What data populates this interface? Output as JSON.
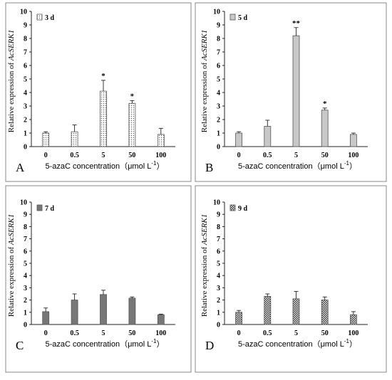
{
  "chart_data": [
    {
      "type": "bar",
      "panel_letter": "A",
      "legend": "3 d",
      "categories": [
        "0",
        "0.5",
        "5",
        "50",
        "100"
      ],
      "values": [
        1.0,
        1.1,
        4.1,
        3.2,
        0.9
      ],
      "errors": [
        0.1,
        0.5,
        0.8,
        0.2,
        0.45
      ],
      "significance": [
        "",
        "",
        "*",
        "*",
        ""
      ],
      "ylabel_prefix": "Relative expression of ",
      "ylabel_gene": "AcSERK1",
      "xlabel": "5-azaC  concentration（μmol L",
      "xlabel_sup": "-1",
      "xlabel_end": "）",
      "yticks": [
        "0",
        "1",
        "2",
        "3",
        "4",
        "5",
        "6",
        "7",
        "8",
        "9",
        "10"
      ],
      "ylim": [
        0,
        10
      ],
      "fill": "dots"
    },
    {
      "type": "bar",
      "panel_letter": "B",
      "legend": "5 d",
      "categories": [
        "0",
        "0.5",
        "5",
        "50",
        "100"
      ],
      "values": [
        1.0,
        1.5,
        8.2,
        2.7,
        0.9
      ],
      "errors": [
        0.1,
        0.45,
        0.6,
        0.15,
        0.1
      ],
      "significance": [
        "",
        "",
        "**",
        "*",
        ""
      ],
      "ylabel_prefix": "Relative expression of ",
      "ylabel_gene": "AcSERK1",
      "xlabel": "5-azaC  concentration（μmol L",
      "xlabel_sup": "-1",
      "xlabel_end": "）",
      "yticks": [
        "0",
        "1",
        "2",
        "3",
        "4",
        "5",
        "6",
        "7",
        "8",
        "9",
        "10"
      ],
      "ylim": [
        0,
        10
      ],
      "fill": "gray"
    },
    {
      "type": "bar",
      "panel_letter": "C",
      "legend": "7 d",
      "categories": [
        "0",
        "0.5",
        "5",
        "50",
        "100"
      ],
      "values": [
        1.05,
        2.0,
        2.45,
        2.15,
        0.8
      ],
      "errors": [
        0.3,
        0.5,
        0.35,
        0.1,
        0.05
      ],
      "significance": [
        "",
        "",
        "",
        "",
        ""
      ],
      "ylabel_prefix": "Relative expression of ",
      "ylabel_gene": "AcSERK1",
      "xlabel": "5-azaC  concentration（μmol L",
      "xlabel_sup": "-1",
      "xlabel_end": "）",
      "yticks": [
        "0",
        "1",
        "2",
        "3",
        "4",
        "5",
        "6",
        "7",
        "8",
        "9",
        "10"
      ],
      "ylim": [
        0,
        10
      ],
      "fill": "dark"
    },
    {
      "type": "bar",
      "panel_letter": "D",
      "legend": "9 d",
      "categories": [
        "0",
        "0.5",
        "5",
        "50",
        "100"
      ],
      "values": [
        1.0,
        2.3,
        2.1,
        2.0,
        0.8
      ],
      "errors": [
        0.15,
        0.2,
        0.6,
        0.25,
        0.25
      ],
      "significance": [
        "",
        "",
        "",
        "",
        ""
      ],
      "ylabel_prefix": "Relative expression of ",
      "ylabel_gene": "AcSERK1",
      "xlabel": "5-azaC  concentration（μmol L",
      "xlabel_sup": "-1",
      "xlabel_end": "）",
      "yticks": [
        "0",
        "1",
        "2",
        "3",
        "4",
        "5",
        "6",
        "7",
        "8",
        "9",
        "10"
      ],
      "ylim": [
        0,
        10
      ],
      "fill": "check"
    }
  ],
  "colors": {
    "border": "#8a8a8a",
    "bar_outline": "#555555",
    "gray_fill": "#c8c8c8",
    "dark_fill": "#777777"
  }
}
